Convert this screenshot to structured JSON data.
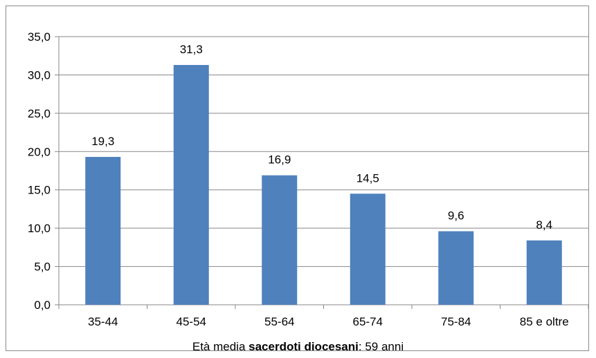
{
  "chart_data": {
    "type": "bar",
    "categories": [
      "35-44",
      "45-54",
      "55-64",
      "65-74",
      "75-84",
      "85 e oltre"
    ],
    "values": [
      19.3,
      31.3,
      16.9,
      14.5,
      9.6,
      8.4
    ],
    "data_labels": [
      "19,3",
      "31,3",
      "16,9",
      "14,5",
      "9,6",
      "8,4"
    ],
    "yticks": [
      0,
      5,
      10,
      15,
      20,
      25,
      30,
      35
    ],
    "ytick_labels": [
      "0,0",
      "5,0",
      "10,0",
      "15,0",
      "20,0",
      "25,0",
      "30,0",
      "35,0"
    ],
    "ylim": [
      0,
      35
    ],
    "grid": true,
    "bar_color": "#4f81bd",
    "grid_color": "#878787"
  },
  "caption": {
    "prefix": "Età media ",
    "bold": "sacerdoti diocesani",
    "suffix": ":  59 anni"
  }
}
